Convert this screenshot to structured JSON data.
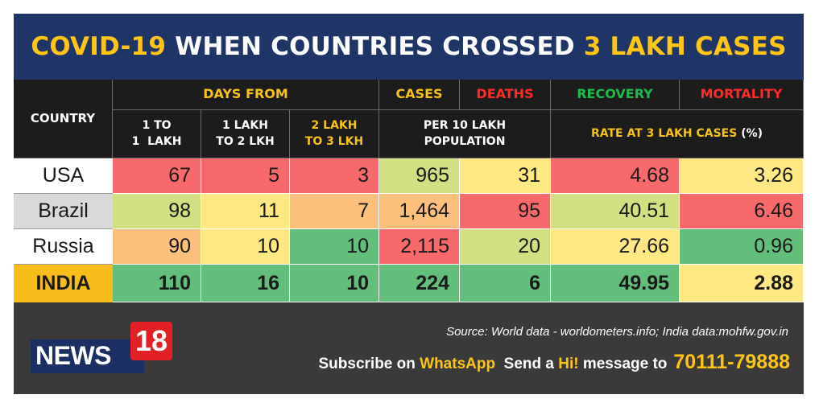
{
  "title": {
    "part1": "COVID-19",
    "part2": "WHEN COUNTRIES CROSSED",
    "part3": "3 LAKH CASES"
  },
  "headers": {
    "country": "COUNTRY",
    "days_from": "DAYS FROM",
    "cases": "CASES",
    "deaths": "DEATHS",
    "recovery": "RECOVERY",
    "mortality": "MORTALITY",
    "col_1_line1": "1 TO",
    "col_1_line2": "1  LAKH",
    "col_2_line1": "1 LAKH",
    "col_2_line2": "TO 2 LKH",
    "col_3_line1": "2 LAKH",
    "col_3_line2": "TO 3 LKH",
    "per_line1": "PER 10 LAKH",
    "per_line2": "POPULATION",
    "rate_text": "RATE AT 3 LAKH CASES",
    "rate_unit": "(%)"
  },
  "rows": [
    {
      "country": "USA",
      "d1": "67",
      "d2": "5",
      "d3": "3",
      "cases": "965",
      "deaths": "31",
      "recovery": "4.68",
      "mortality": "3.26"
    },
    {
      "country": "Brazil",
      "d1": "98",
      "d2": "11",
      "d3": "7",
      "cases": "1,464",
      "deaths": "95",
      "recovery": "40.51",
      "mortality": "6.46"
    },
    {
      "country": "Russia",
      "d1": "90",
      "d2": "10",
      "d3": "10",
      "cases": "2,115",
      "deaths": "20",
      "recovery": "27.66",
      "mortality": "0.96"
    },
    {
      "country": "INDIA",
      "d1": "110",
      "d2": "16",
      "d3": "10",
      "cases": "224",
      "deaths": "6",
      "recovery": "49.95",
      "mortality": "2.88"
    }
  ],
  "colors": {
    "title_bg": "#1f3467",
    "accent_yellow": "#ffc515",
    "red_cell": "#f8696b",
    "orange_cell": "#fdc07c",
    "light_yellow_cell": "#fee883",
    "yellow_green_cell": "#d2df82",
    "green_cell": "#63be7b",
    "india_row": "#f7bd1b"
  },
  "footer": {
    "logo_news": "NEWS",
    "logo_18": "18",
    "source": "Source: World data - worldometers.info; India data:mohfw.gov.in",
    "subscribe_1": "Subscribe on",
    "whatsapp": "WhatsApp",
    "send_a": "Send a",
    "hi": "Hi!",
    "message_to": "message to",
    "number": "70111-79888"
  }
}
